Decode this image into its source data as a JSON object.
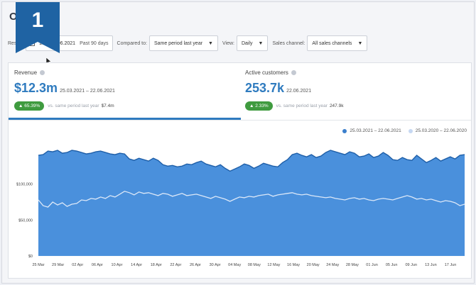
{
  "page": {
    "title": "Ob"
  },
  "badge": {
    "number": "1",
    "color": "#1f63a3"
  },
  "controls": {
    "result_label": "Res",
    "date_range": "21 – 22.06.2021",
    "date_preset": "Past 90 days",
    "compared_label": "Compared to:",
    "compared_value": "Same period last year",
    "view_label": "View:",
    "view_value": "Daily",
    "channel_label": "Sales channel:",
    "channel_value": "All sales channels",
    "caret": "▼"
  },
  "metrics": [
    {
      "label": "Revenue",
      "value": "$12.3m",
      "date": "25.03.2021 – 22.06.2021",
      "change": "▲ 65.39%",
      "cmp_text": "vs. same period last year",
      "cmp_value": "$7.4m"
    },
    {
      "label": "Active customers",
      "value": "253.7k",
      "date": "22.06.2021",
      "change": "▲ 2.33%",
      "cmp_text": "vs. same period last year",
      "cmp_value": "247.9k"
    }
  ],
  "legend": [
    {
      "label": "25.03.2021 – 22.06.2021",
      "color": "#3b7fcc"
    },
    {
      "label": "25.03.2020 – 22.06.2020",
      "color": "#c6d8f2"
    }
  ],
  "colors": {
    "accent": "#2f7bbf",
    "area": "#4a90dc",
    "area_line": "#1f5fa8",
    "prior_line": "#dce8f8",
    "positive": "#3f9b3f"
  },
  "chart_data": {
    "type": "area",
    "ylim": [
      0,
      150000
    ],
    "yticks": [
      0,
      50000,
      100000
    ],
    "ytick_labels": [
      "$0",
      "$50,000",
      "$100,000"
    ],
    "x_tick_labels": [
      "25 Mar",
      "29 Mar",
      "02 Apr",
      "06 Apr",
      "10 Apr",
      "14 Apr",
      "18 Apr",
      "22 Apr",
      "26 Apr",
      "30 Apr",
      "04 May",
      "08 May",
      "12 May",
      "16 May",
      "20 May",
      "24 May",
      "28 May",
      "01 Jun",
      "05 Jun",
      "09 Jun",
      "13 Jun",
      "17 Jun"
    ],
    "series": [
      {
        "name": "25.03.2021 – 22.06.2021",
        "values": [
          140000,
          141000,
          146000,
          145000,
          147000,
          143000,
          144000,
          147000,
          146000,
          144000,
          142000,
          143000,
          145000,
          146000,
          144000,
          142000,
          141000,
          143000,
          142000,
          135000,
          133000,
          136000,
          134000,
          132000,
          136000,
          133000,
          127000,
          125000,
          126000,
          124000,
          125000,
          128000,
          127000,
          130000,
          132000,
          128000,
          126000,
          124000,
          127000,
          122000,
          118000,
          121000,
          124000,
          128000,
          126000,
          122000,
          125000,
          129000,
          127000,
          125000,
          124000,
          130000,
          134000,
          141000,
          143000,
          140000,
          138000,
          141000,
          137000,
          139000,
          144000,
          147000,
          145000,
          143000,
          141000,
          145000,
          143000,
          138000,
          139000,
          142000,
          137000,
          139000,
          144000,
          140000,
          134000,
          133000,
          137000,
          134000,
          133000,
          140000,
          135000,
          130000,
          133000,
          137000,
          132000,
          135000,
          138000,
          135000,
          140000,
          141000
        ]
      },
      {
        "name": "25.03.2020 – 22.06.2020",
        "values": [
          78000,
          70000,
          68000,
          75000,
          71000,
          74000,
          69000,
          72000,
          73000,
          78000,
          77000,
          80000,
          79000,
          82000,
          80000,
          84000,
          82000,
          86000,
          90000,
          88000,
          85000,
          89000,
          87000,
          88000,
          86000,
          84000,
          87000,
          86000,
          83000,
          85000,
          87000,
          84000,
          85000,
          86000,
          84000,
          82000,
          80000,
          83000,
          81000,
          79000,
          76000,
          79000,
          82000,
          81000,
          83000,
          82000,
          84000,
          85000,
          86000,
          83000,
          85000,
          86000,
          87000,
          88000,
          86000,
          85000,
          86000,
          84000,
          83000,
          82000,
          81000,
          82000,
          80000,
          79000,
          78000,
          80000,
          81000,
          79000,
          80000,
          78000,
          77000,
          79000,
          80000,
          79000,
          78000,
          80000,
          82000,
          84000,
          82000,
          79000,
          80000,
          78000,
          79000,
          77000,
          75000,
          77000,
          76000,
          74000,
          70000,
          72000
        ]
      }
    ]
  }
}
